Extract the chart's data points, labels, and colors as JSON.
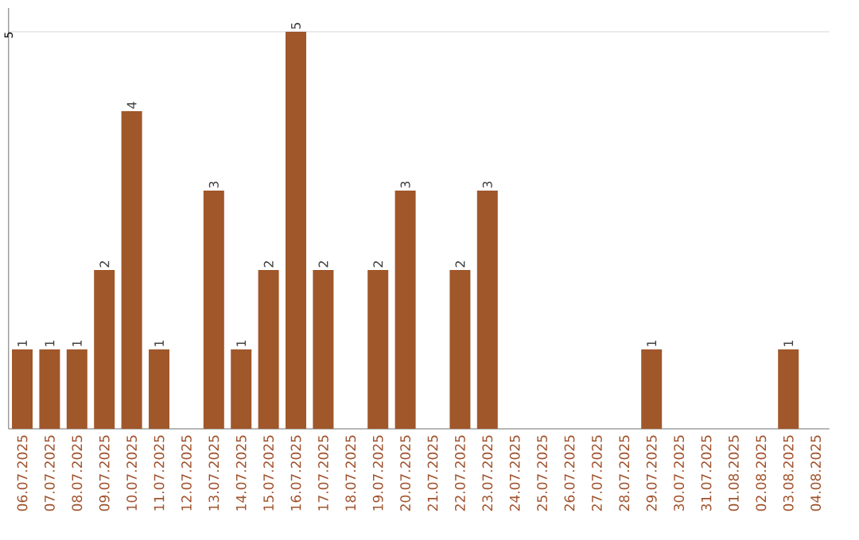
{
  "chart_data": {
    "type": "bar",
    "categories": [
      "06.07.2025",
      "07.07.2025",
      "08.07.2025",
      "09.07.2025",
      "10.07.2025",
      "11.07.2025",
      "12.07.2025",
      "13.07.2025",
      "14.07.2025",
      "15.07.2025",
      "16.07.2025",
      "17.07.2025",
      "18.07.2025",
      "19.07.2025",
      "20.07.2025",
      "21.07.2025",
      "22.07.2025",
      "23.07.2025",
      "24.07.2025",
      "25.07.2025",
      "26.07.2025",
      "27.07.2025",
      "28.07.2025",
      "29.07.2025",
      "30.07.2025",
      "31.07.2025",
      "01.08.2025",
      "02.08.2025",
      "03.08.2025",
      "04.08.2025"
    ],
    "values": [
      1,
      1,
      1,
      2,
      4,
      1,
      0,
      3,
      1,
      2,
      5,
      2,
      0,
      2,
      3,
      0,
      2,
      3,
      0,
      0,
      0,
      0,
      0,
      1,
      0,
      0,
      0,
      0,
      1,
      0
    ],
    "value_labels": [
      "1",
      "1",
      "1",
      "2",
      "4",
      "1",
      null,
      "3",
      "1",
      "2",
      "5",
      "2",
      null,
      "2",
      "3",
      null,
      "2",
      "3",
      null,
      null,
      null,
      null,
      null,
      "1",
      null,
      null,
      null,
      null,
      "1",
      null
    ],
    "color": "#a0572a",
    "ylim": [
      0,
      5.3
    ],
    "yticks": [
      5
    ],
    "grid": "y"
  }
}
